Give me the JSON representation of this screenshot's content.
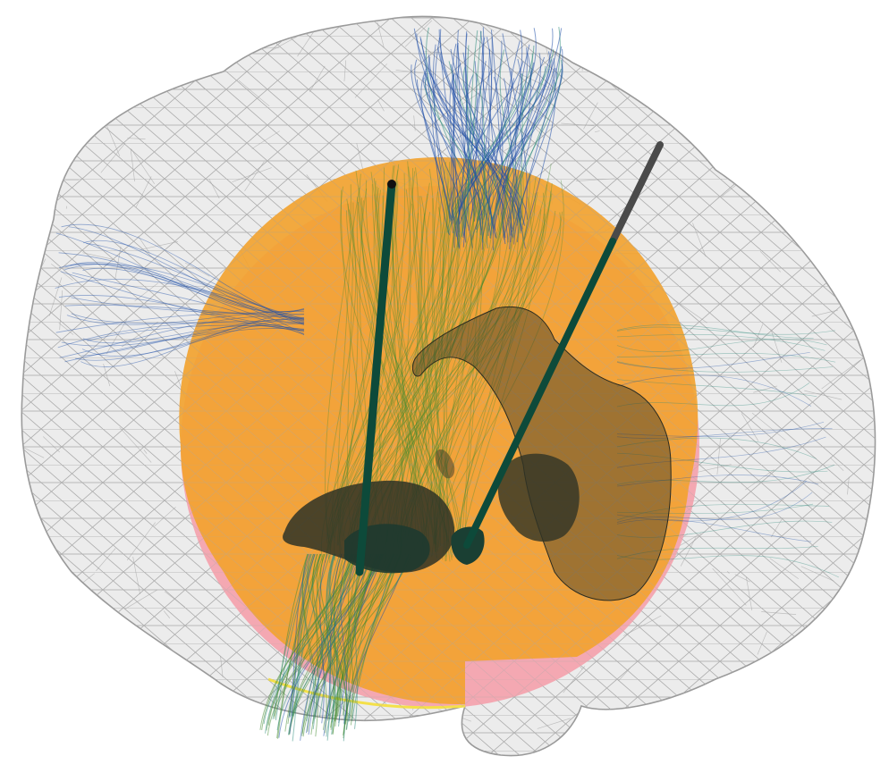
{
  "scene": {
    "kind": "3d-brain-render",
    "colors": {
      "background": "#ffffff",
      "brain_mesh_line": "#9a9a9a",
      "brain_mesh_fill": "#ececec",
      "sphere_orange": "#f2a330",
      "sphere_pink": "#f4a8b2",
      "sphere_edge": "#f4e04a",
      "fiber_blue": "#1f4fa8",
      "fiber_teal": "#2a8a7a",
      "fiber_green": "#3f8a2e",
      "structure_dark": "#3a3a2a",
      "electrode_green": "#0d4a3a",
      "electrode_gray": "#4a4a4a"
    },
    "layers": [
      "brain-mesh",
      "stimulation-sphere",
      "fiber-tracts",
      "deep-brain-structures",
      "electrodes"
    ]
  }
}
